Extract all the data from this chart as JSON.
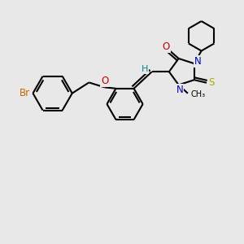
{
  "background_color": "#e8e8e8",
  "bond_color": "#000000",
  "bond_width": 1.5,
  "figsize": [
    3.0,
    3.0
  ],
  "dpi": 100,
  "atoms": {
    "Br": {
      "color": "#cc6600",
      "fontsize": 8.5
    },
    "O": {
      "color": "#cc0000",
      "fontsize": 8.5
    },
    "N": {
      "color": "#0000cc",
      "fontsize": 8.5
    },
    "S": {
      "color": "#aaaa00",
      "fontsize": 8.5
    },
    "H": {
      "color": "#008888",
      "fontsize": 8
    },
    "C_label": {
      "color": "#000000",
      "fontsize": 7.5
    }
  },
  "xlim": [
    0,
    10
  ],
  "ylim": [
    0,
    10
  ]
}
